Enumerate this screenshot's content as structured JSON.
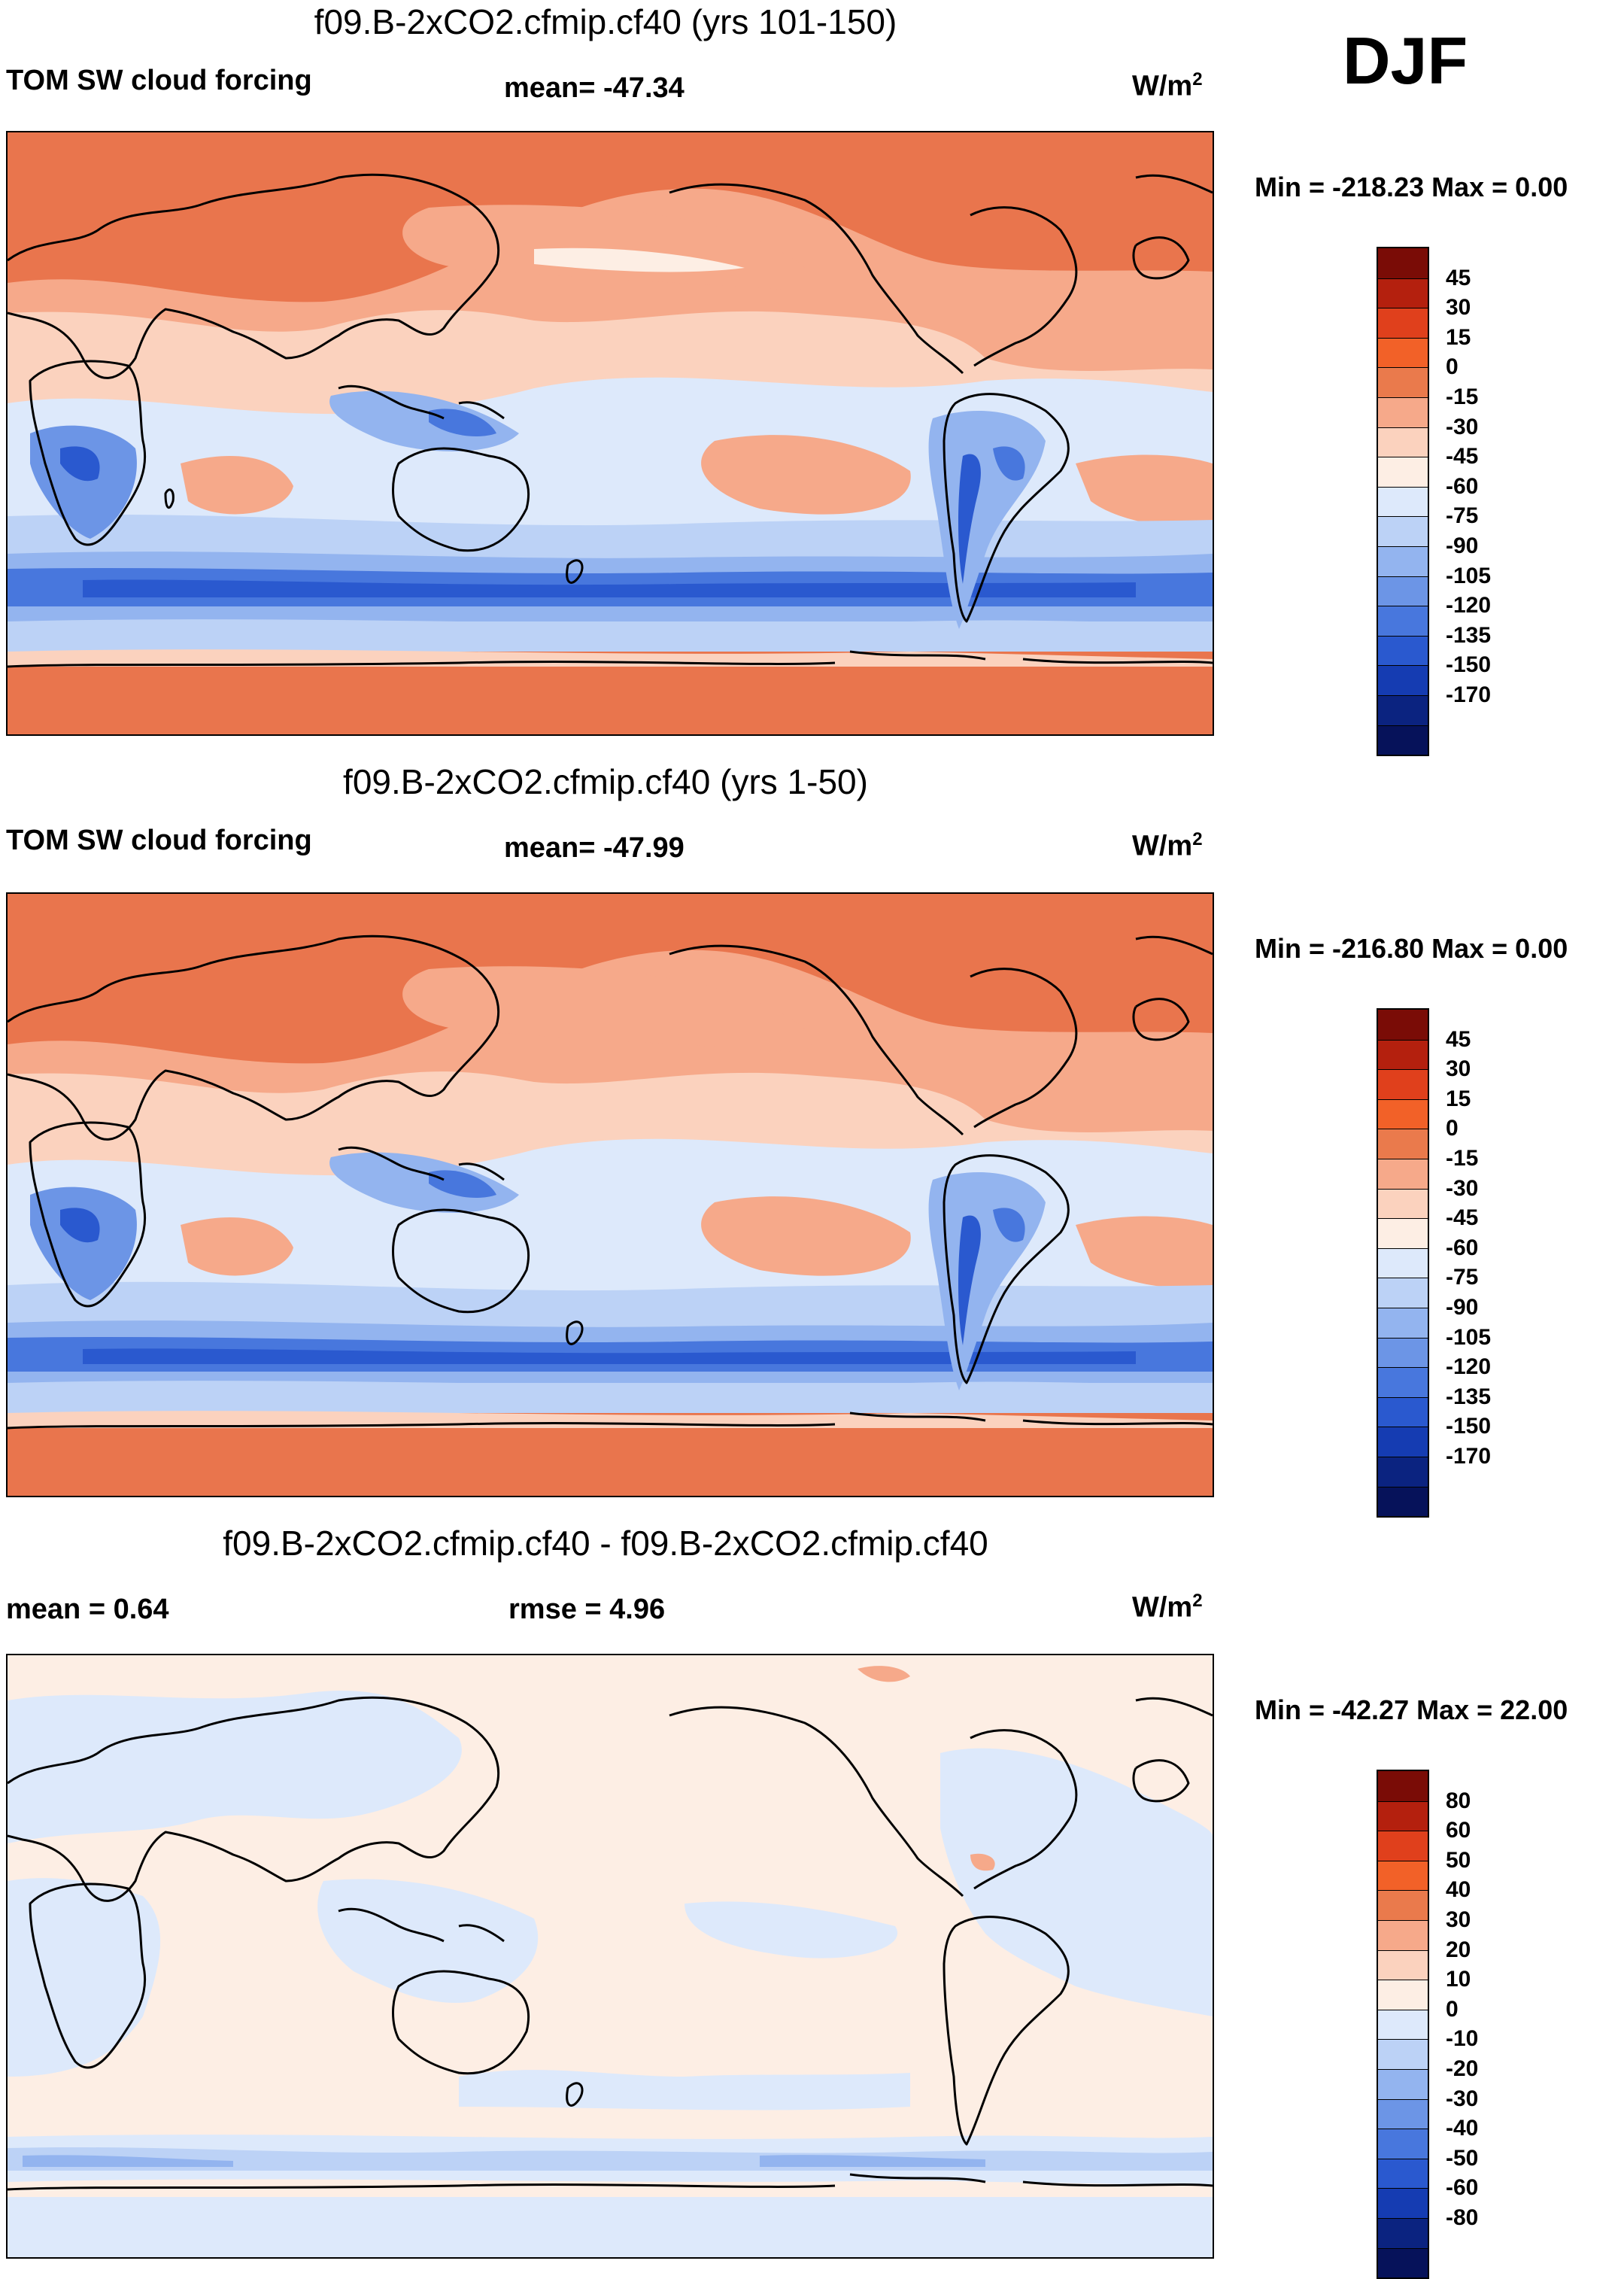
{
  "season": "DJF",
  "panels": [
    {
      "title": "f09.B-2xCO2.cfmip.cf40 (yrs 101-150)",
      "left_label": "TOM SW cloud forcing",
      "center_label": "mean= -47.34",
      "units_base": "W/m",
      "units_exp": "2",
      "min_max": "Min = -218.23 Max =   0.00",
      "colorbar": {
        "colors": [
          "#7a0c06",
          "#b4200e",
          "#e0401c",
          "#f26128",
          "#ea7a4c",
          "#f6a98a",
          "#fbd2be",
          "#fdeee4",
          "#dde9fb",
          "#bcd2f6",
          "#93b4ef",
          "#6c95e6",
          "#4877dd",
          "#2a59cf",
          "#153cb2",
          "#0b2380",
          "#06125a"
        ],
        "ticks": [
          "45",
          "30",
          "15",
          "0",
          "-15",
          "-30",
          "-45",
          "-60",
          "-75",
          "-90",
          "-105",
          "-120",
          "-135",
          "-150",
          "-170"
        ]
      }
    },
    {
      "title": "f09.B-2xCO2.cfmip.cf40 (yrs 1-50)",
      "left_label": "TOM SW cloud forcing",
      "center_label": "mean= -47.99",
      "units_base": "W/m",
      "units_exp": "2",
      "min_max": "Min = -216.80 Max =   0.00",
      "colorbar": {
        "colors": [
          "#7a0c06",
          "#b4200e",
          "#e0401c",
          "#f26128",
          "#ea7a4c",
          "#f6a98a",
          "#fbd2be",
          "#fdeee4",
          "#dde9fb",
          "#bcd2f6",
          "#93b4ef",
          "#6c95e6",
          "#4877dd",
          "#2a59cf",
          "#153cb2",
          "#0b2380",
          "#06125a"
        ],
        "ticks": [
          "45",
          "30",
          "15",
          "0",
          "-15",
          "-30",
          "-45",
          "-60",
          "-75",
          "-90",
          "-105",
          "-120",
          "-135",
          "-150",
          "-170"
        ]
      }
    },
    {
      "title": "f09.B-2xCO2.cfmip.cf40 - f09.B-2xCO2.cfmip.cf40",
      "left_label": "mean =   0.64",
      "center_label": "rmse =   4.96",
      "units_base": "W/m",
      "units_exp": "2",
      "min_max": "Min = -42.27 Max =  22.00",
      "colorbar": {
        "colors": [
          "#7a0c06",
          "#b4200e",
          "#e0401c",
          "#f26128",
          "#ea7a4c",
          "#f6a98a",
          "#fbd2be",
          "#fdeee4",
          "#dde9fb",
          "#bcd2f6",
          "#93b4ef",
          "#6c95e6",
          "#4877dd",
          "#2a59cf",
          "#153cb2",
          "#0b2380",
          "#06125a"
        ],
        "ticks": [
          "80",
          "60",
          "50",
          "40",
          "30",
          "20",
          "10",
          "0",
          "-10",
          "-20",
          "-30",
          "-40",
          "-50",
          "-60",
          "-80"
        ]
      }
    }
  ]
}
